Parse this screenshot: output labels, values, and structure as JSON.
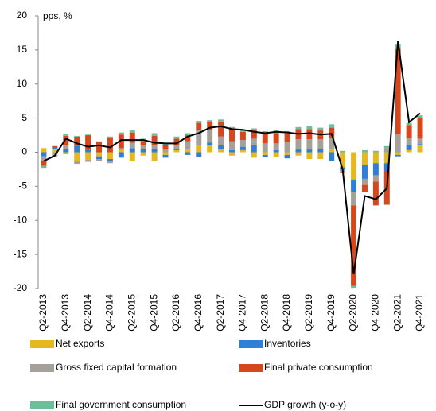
{
  "chart_data": {
    "type": "bar",
    "stacked": true,
    "ylabel": "pps, %",
    "categories": [
      "Q2-2013",
      null,
      "Q4-2013",
      null,
      "Q2-2014",
      null,
      "Q4-2014",
      null,
      "Q2-2015",
      null,
      "Q4-2015",
      null,
      "Q2-2016",
      null,
      "Q4-2016",
      null,
      "Q2-2017",
      null,
      "Q4-2017",
      null,
      "Q2-2018",
      null,
      "Q4-2018",
      null,
      "Q2-2019",
      null,
      "Q4-2019",
      null,
      "Q2-2020",
      null,
      "Q4-2020",
      null,
      "Q2-2021",
      null,
      "Q4-2021"
    ],
    "ylim": [
      -20,
      20
    ],
    "yticks": [
      -20,
      -15,
      -10,
      -5,
      0,
      5,
      10,
      15,
      20
    ],
    "grid": false,
    "series": [
      {
        "name": "Net exports",
        "color": "#e6b820",
        "values": [
          0.6,
          0.5,
          -0.3,
          -1.3,
          -1.1,
          -0.6,
          -1.0,
          0.3,
          -1.3,
          -0.5,
          -1.3,
          -0.4,
          0.3,
          0.4,
          1.0,
          1.0,
          0.5,
          -0.5,
          0.3,
          -0.8,
          -0.4,
          -0.7,
          -0.4,
          -0.5,
          -1.0,
          -1.0,
          0.5,
          -2.2,
          -4.0,
          -1.9,
          -1.6,
          -1.6,
          -0.4,
          0.3,
          1.0
        ]
      },
      {
        "name": "Inventories",
        "color": "#2f7ed8",
        "values": [
          -0.6,
          0.2,
          0.5,
          0.9,
          0.4,
          -0.4,
          -0.3,
          -0.8,
          0.6,
          0.5,
          0.5,
          -0.4,
          0.2,
          -0.4,
          -0.7,
          0.4,
          0.5,
          0.3,
          0.5,
          1.0,
          -0.3,
          0.3,
          -0.5,
          0.4,
          0.4,
          0.5,
          -1.3,
          -0.4,
          -1.8,
          -2.0,
          -1.8,
          -1.2,
          -0.2,
          0.8,
          0.2
        ]
      },
      {
        "name": "Gross fixed capital formation",
        "color": "#a6a09a",
        "values": [
          -0.6,
          -0.6,
          0.5,
          -0.4,
          -0.3,
          -0.3,
          -0.3,
          0.3,
          0.8,
          0.5,
          0.6,
          0.5,
          0.5,
          1.2,
          2.3,
          1.8,
          1.3,
          1.3,
          1.0,
          1.0,
          1.3,
          1.0,
          1.5,
          1.5,
          1.5,
          1.4,
          1.6,
          -0.3,
          -2.0,
          -0.9,
          -0.9,
          0.6,
          2.6,
          1.0,
          0.8
        ]
      },
      {
        "name": "Final private consumption",
        "color": "#d5481e",
        "values": [
          -0.8,
          0.2,
          1.4,
          1.4,
          2.1,
          1.5,
          2.2,
          2.0,
          1.5,
          0.5,
          1.3,
          0.5,
          1.0,
          0.9,
          1.0,
          1.2,
          2.2,
          1.8,
          1.2,
          1.3,
          1.5,
          1.5,
          1.2,
          1.5,
          1.5,
          1.3,
          1.5,
          -0.1,
          -11.8,
          -1.0,
          -3.5,
          -4.9,
          12.5,
          1.9,
          3.0
        ]
      },
      {
        "name": "Final government consumption",
        "color": "#6dbf9a",
        "values": [
          -0.3,
          0.0,
          0.3,
          0.1,
          0.1,
          0.1,
          0.1,
          0.3,
          0.3,
          0.5,
          0.4,
          0.3,
          0.3,
          0.3,
          0.3,
          0.3,
          0.3,
          0.3,
          0.3,
          0.2,
          0.3,
          0.4,
          0.4,
          0.3,
          0.4,
          0.4,
          0.5,
          0.2,
          -0.3,
          0.3,
          0.2,
          0.3,
          0.8,
          0.3,
          0.4
        ]
      },
      {
        "name": "GDP growth (y-o-y)",
        "color": "#000000",
        "type": "line",
        "values": [
          -1.3,
          -0.5,
          2.0,
          1.3,
          0.8,
          1.0,
          0.7,
          1.8,
          1.8,
          1.8,
          1.4,
          1.3,
          1.3,
          2.3,
          2.8,
          3.6,
          3.8,
          3.4,
          3.3,
          3.0,
          2.8,
          3.0,
          2.9,
          2.7,
          2.8,
          2.6,
          2.7,
          -2.5,
          -17.9,
          -6.4,
          -6.9,
          -5.3,
          16.3,
          4.4,
          5.7
        ]
      }
    ]
  }
}
